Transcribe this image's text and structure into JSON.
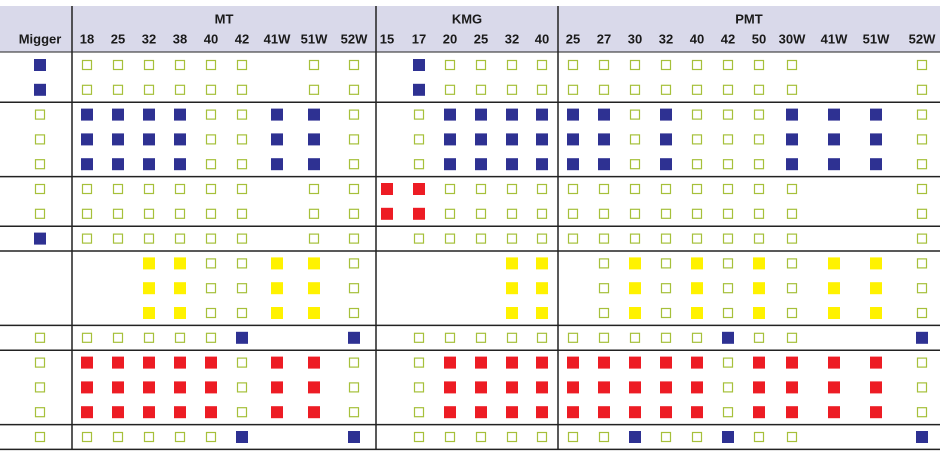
{
  "table": {
    "corner": "Migger",
    "groups": [
      {
        "label": "MT",
        "columns": [
          "18",
          "25",
          "32",
          "38",
          "40",
          "42",
          "41W",
          "51W",
          "52W"
        ]
      },
      {
        "label": "KMG",
        "columns": [
          "15",
          "17",
          "20",
          "25",
          "32",
          "40"
        ]
      },
      {
        "label": "PMT",
        "columns": [
          "25",
          "27",
          "30",
          "32",
          "40",
          "42",
          "50",
          "30W",
          "41W",
          "51W",
          "52W"
        ]
      }
    ],
    "cell_colors": {
      "B": "#2e3192",
      "R": "#ed1c24",
      "Y": "#fff200",
      "O": "#a6c03a"
    },
    "row_groups": [
      [
        [
          "B",
          "O",
          "O",
          "O",
          "O",
          "O",
          "O",
          null,
          "O",
          "O",
          null,
          "B",
          "O",
          "O",
          "O",
          "O",
          "O",
          "O",
          "O",
          "O",
          "O",
          "O",
          "O",
          "O",
          null,
          null,
          "O"
        ],
        [
          "B",
          "O",
          "O",
          "O",
          "O",
          "O",
          "O",
          null,
          "O",
          "O",
          null,
          "B",
          "O",
          "O",
          "O",
          "O",
          "O",
          "O",
          "O",
          "O",
          "O",
          "O",
          "O",
          "O",
          null,
          null,
          "O"
        ]
      ],
      [
        [
          "O",
          "B",
          "B",
          "B",
          "B",
          "O",
          "O",
          "B",
          "B",
          "O",
          null,
          "O",
          "B",
          "B",
          "B",
          "B",
          "B",
          "B",
          "O",
          "B",
          "O",
          "O",
          "O",
          "B",
          "B",
          "B",
          "O"
        ],
        [
          "O",
          "B",
          "B",
          "B",
          "B",
          "O",
          "O",
          "B",
          "B",
          "O",
          null,
          "O",
          "B",
          "B",
          "B",
          "B",
          "B",
          "B",
          "O",
          "B",
          "O",
          "O",
          "O",
          "B",
          "B",
          "B",
          "O"
        ],
        [
          "O",
          "B",
          "B",
          "B",
          "B",
          "O",
          "O",
          "B",
          "B",
          "O",
          null,
          "O",
          "B",
          "B",
          "B",
          "B",
          "B",
          "B",
          "O",
          "B",
          "O",
          "O",
          "O",
          "B",
          "B",
          "B",
          "O"
        ]
      ],
      [
        [
          "O",
          "O",
          "O",
          "O",
          "O",
          "O",
          "O",
          null,
          "O",
          "O",
          "R",
          "R",
          "O",
          "O",
          "O",
          "O",
          "O",
          "O",
          "O",
          "O",
          "O",
          "O",
          "O",
          "O",
          null,
          null,
          "O"
        ],
        [
          "O",
          "O",
          "O",
          "O",
          "O",
          "O",
          "O",
          null,
          "O",
          "O",
          "R",
          "R",
          "O",
          "O",
          "O",
          "O",
          "O",
          "O",
          "O",
          "O",
          "O",
          "O",
          "O",
          "O",
          null,
          null,
          "O"
        ]
      ],
      [
        [
          "B",
          "O",
          "O",
          "O",
          "O",
          "O",
          "O",
          null,
          "O",
          "O",
          null,
          "O",
          "O",
          "O",
          "O",
          "O",
          "O",
          "O",
          "O",
          "O",
          "O",
          "O",
          "O",
          "O",
          null,
          null,
          "O"
        ]
      ],
      [
        [
          null,
          null,
          null,
          "Y",
          "Y",
          "O",
          "O",
          "Y",
          "Y",
          "O",
          null,
          null,
          null,
          null,
          "Y",
          "Y",
          null,
          "O",
          "Y",
          "O",
          "Y",
          "O",
          "Y",
          "O",
          "Y",
          "Y",
          "O"
        ],
        [
          null,
          null,
          null,
          "Y",
          "Y",
          "O",
          "O",
          "Y",
          "Y",
          "O",
          null,
          null,
          null,
          null,
          "Y",
          "Y",
          null,
          "O",
          "Y",
          "O",
          "Y",
          "O",
          "Y",
          "O",
          "Y",
          "Y",
          "O"
        ],
        [
          null,
          null,
          null,
          "Y",
          "Y",
          "O",
          "O",
          "Y",
          "Y",
          "O",
          null,
          null,
          null,
          null,
          "Y",
          "Y",
          null,
          "O",
          "Y",
          "O",
          "Y",
          "O",
          "Y",
          "O",
          "Y",
          "Y",
          "O"
        ]
      ],
      [
        [
          "O",
          "O",
          "O",
          "O",
          "O",
          "O",
          "B",
          null,
          null,
          "B",
          null,
          "O",
          "O",
          "O",
          "O",
          "O",
          "O",
          "O",
          "O",
          "O",
          "O",
          "B",
          "O",
          "O",
          null,
          null,
          "B"
        ]
      ],
      [
        [
          "O",
          "R",
          "R",
          "R",
          "R",
          "R",
          "O",
          "R",
          "R",
          "O",
          null,
          "O",
          "R",
          "R",
          "R",
          "R",
          "R",
          "R",
          "R",
          "R",
          "R",
          "O",
          "R",
          "R",
          "R",
          "R",
          "O"
        ],
        [
          "O",
          "R",
          "R",
          "R",
          "R",
          "R",
          "O",
          "R",
          "R",
          "O",
          null,
          "O",
          "R",
          "R",
          "R",
          "R",
          "R",
          "R",
          "R",
          "R",
          "R",
          "O",
          "R",
          "R",
          "R",
          "R",
          "O"
        ],
        [
          "O",
          "R",
          "R",
          "R",
          "R",
          "R",
          "O",
          "R",
          "R",
          "O",
          null,
          "O",
          "R",
          "R",
          "R",
          "R",
          "R",
          "R",
          "R",
          "R",
          "R",
          "O",
          "R",
          "R",
          "R",
          "R",
          "O"
        ]
      ],
      [
        [
          "O",
          "O",
          "O",
          "O",
          "O",
          "O",
          "B",
          null,
          null,
          "B",
          null,
          "O",
          "O",
          "O",
          "O",
          "O",
          "O",
          "O",
          "B",
          "O",
          "O",
          "B",
          "O",
          "O",
          null,
          null,
          "B"
        ]
      ]
    ]
  }
}
